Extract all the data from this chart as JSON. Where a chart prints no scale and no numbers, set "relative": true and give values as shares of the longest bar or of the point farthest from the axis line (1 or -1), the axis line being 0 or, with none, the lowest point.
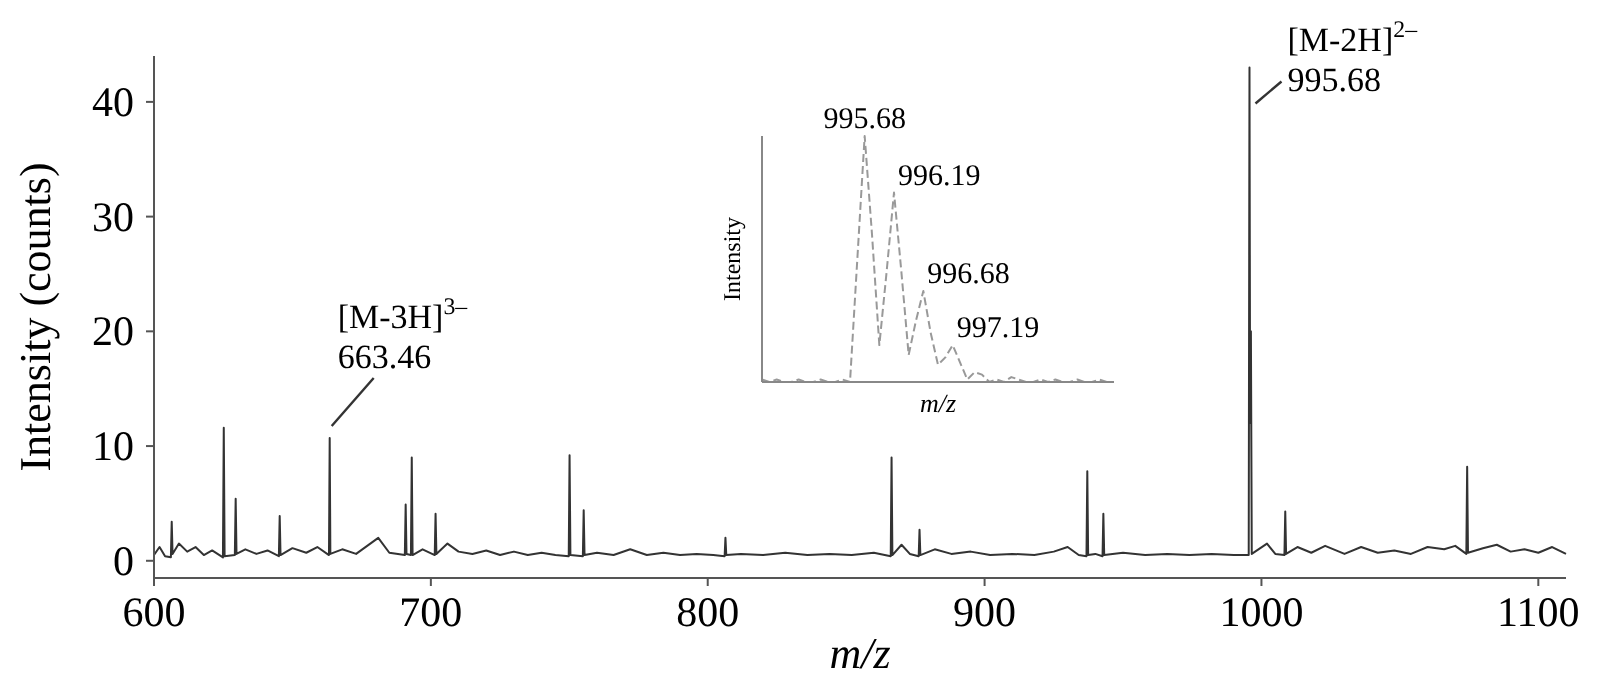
{
  "chart_data": [
    {
      "type": "line",
      "xlabel": "m/z",
      "ylabel": "Intensity (counts)",
      "xlim": [
        600,
        1110
      ],
      "ylim": [
        -1.5,
        44
      ],
      "xticks": [
        600,
        700,
        800,
        900,
        1000,
        1100
      ],
      "yticks": [
        0,
        10,
        20,
        30,
        40
      ],
      "marker": "none",
      "line_style": "solid",
      "annotations": [
        {
          "text": "[M-3H]$^{3–}$\n663.46",
          "x": 663.46,
          "y": 10.7
        },
        {
          "text": "[M-2H]$^{2–}$\n995.68",
          "x": 995.68,
          "y": 43
        }
      ],
      "series": [
        {
          "color": "#333333",
          "x": [
            600,
            602,
            604,
            606.1,
            606.4,
            606.7,
            609,
            612,
            615,
            618,
            621,
            624.9,
            625.2,
            625.5,
            629.2,
            629.5,
            629.8,
            633,
            637,
            641,
            645.1,
            645.4,
            645.7,
            650,
            655,
            659,
            663.2,
            663.46,
            663.7,
            668,
            673,
            677,
            681,
            685,
            690.6,
            690.9,
            691.2,
            692.8,
            693.1,
            693.4,
            697,
            701.4,
            701.7,
            702,
            706,
            710,
            715,
            720,
            725,
            730,
            735,
            740,
            745,
            749.8,
            750.1,
            750.4,
            754.9,
            755.2,
            755.5,
            760,
            766,
            772,
            778,
            784,
            790,
            796,
            802,
            806.1,
            806.4,
            806.7,
            812,
            820,
            828,
            836,
            844,
            852,
            860,
            866.1,
            866.4,
            866.7,
            870,
            873,
            876.2,
            876.5,
            876.8,
            882,
            888,
            895,
            902,
            910,
            918,
            925,
            930,
            934,
            936.8,
            937.1,
            937.4,
            940,
            942.6,
            942.9,
            943.2,
            950,
            958,
            966,
            974,
            982,
            990,
            995.4,
            995.68,
            995.9,
            996.19,
            996.5,
            1002,
            1005,
            1008.3,
            1008.6,
            1008.9,
            1013,
            1018,
            1023,
            1030,
            1036,
            1042,
            1048,
            1054,
            1060,
            1066,
            1070,
            1074,
            1074.3,
            1074.6,
            1080,
            1085,
            1090,
            1095,
            1100,
            1105,
            1110
          ],
          "values": [
            0.5,
            1.2,
            0.4,
            0.3,
            3.4,
            0.6,
            1.5,
            0.8,
            1.2,
            0.5,
            0.9,
            0.3,
            11.6,
            0.4,
            0.5,
            5.4,
            0.6,
            1,
            0.6,
            0.9,
            0.4,
            3.9,
            0.5,
            1.1,
            0.7,
            1.2,
            0.5,
            10.7,
            0.6,
            1,
            0.6,
            1.3,
            2,
            0.7,
            0.5,
            4.9,
            0.6,
            0.5,
            9,
            0.5,
            1,
            0.5,
            4.1,
            0.6,
            1.5,
            0.8,
            0.6,
            0.9,
            0.5,
            0.8,
            0.5,
            0.7,
            0.5,
            0.4,
            9.2,
            0.5,
            0.4,
            4.4,
            0.5,
            0.7,
            0.5,
            1,
            0.5,
            0.7,
            0.5,
            0.6,
            0.5,
            0.4,
            2,
            0.5,
            0.6,
            0.5,
            0.7,
            0.5,
            0.6,
            0.5,
            0.7,
            0.4,
            9,
            0.5,
            1.4,
            0.6,
            0.4,
            2.7,
            0.5,
            1,
            0.6,
            0.8,
            0.5,
            0.6,
            0.5,
            0.8,
            1.2,
            0.5,
            0.4,
            7.8,
            0.5,
            0.6,
            0.4,
            4.1,
            0.5,
            0.7,
            0.5,
            0.6,
            0.5,
            0.6,
            0.5,
            0.5,
            43,
            12,
            20,
            0.6,
            1.5,
            0.6,
            0.5,
            4.3,
            0.6,
            1.2,
            0.7,
            1.3,
            0.6,
            1.2,
            0.7,
            0.9,
            0.6,
            1.2,
            1,
            1.3,
            0.6,
            8.2,
            0.7,
            1.1,
            1.4,
            0.8,
            1,
            0.7,
            1.2,
            0.6
          ]
        }
      ]
    },
    {
      "type": "line",
      "relative": true,
      "xlabel": "m/z",
      "ylabel": "Intensity",
      "marker": "none",
      "line_style": "dashed",
      "annotations": [
        "995.68",
        "996.19",
        "996.68",
        "997.19"
      ],
      "categories": [
        null,
        null,
        null,
        null,
        null,
        null,
        null,
        null,
        null,
        null,
        null,
        null,
        null,
        null,
        null,
        null,
        null,
        null,
        null,
        null,
        null,
        null,
        null,
        null,
        null,
        null,
        null,
        null,
        null,
        null,
        null,
        null,
        null,
        null,
        null,
        null,
        null,
        null,
        null,
        null,
        null,
        null,
        null,
        null,
        null,
        null,
        null,
        null,
        null
      ],
      "series": [
        {
          "color": "#999999",
          "values": [
            0.01,
            0,
            0.01,
            0,
            0,
            0.01,
            0,
            0,
            0.01,
            0,
            0,
            0.01,
            0,
            0.5,
            1,
            0.6,
            0.15,
            0.45,
            0.77,
            0.45,
            0.11,
            0.25,
            0.37,
            0.2,
            0.07,
            0.1,
            0.15,
            0.08,
            0.01,
            0.04,
            0.03,
            0,
            0.01,
            0,
            0.02,
            0.01,
            0,
            0,
            0.01,
            0,
            0.01,
            0,
            0,
            0.01,
            0,
            0,
            0.01,
            0,
            0
          ]
        }
      ]
    }
  ]
}
